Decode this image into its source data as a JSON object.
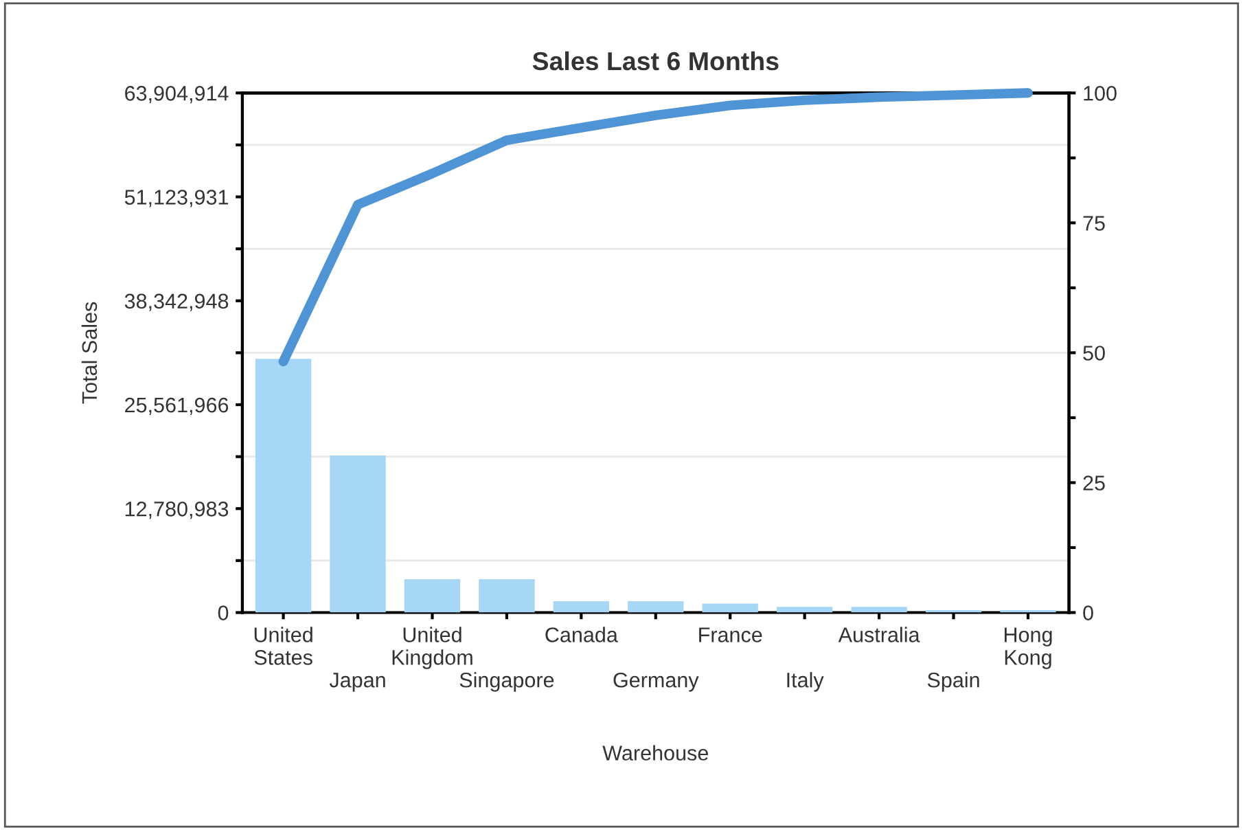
{
  "chart_data": {
    "type": "bar",
    "title": "Sales Last 6 Months",
    "xlabel": "Warehouse",
    "ylabel": "Total Sales",
    "categories": [
      "United\nStates",
      "Japan",
      "United\nKingdom",
      "Singapore",
      "Canada",
      "Germany",
      "France",
      "Italy",
      "Australia",
      "Spain",
      "Hong\nKong"
    ],
    "series": [
      {
        "color": "#a6d7f7",
        "values": [
          31200000,
          19300000,
          4100000,
          4100000,
          1400000,
          1400000,
          1100000,
          700000,
          700000,
          300000,
          300000
        ]
      },
      {
        "type": "line",
        "axis": "y2",
        "color": "#4f94d4",
        "values": [
          48.3,
          78.5,
          84.5,
          90.9,
          93.3,
          95.7,
          97.6,
          98.6,
          99.2,
          99.6,
          100
        ]
      }
    ],
    "ylim": [
      0,
      63904914
    ],
    "yticks": [
      0,
      {
        "value": 6390491.5,
        "label": null
      },
      {
        "value": 12780983,
        "label": "12,780,983"
      },
      {
        "value": 19171474.5,
        "label": null
      },
      {
        "value": 25561966,
        "label": "25,561,966"
      },
      {
        "value": 31952457,
        "label": null
      },
      {
        "value": 38342948,
        "label": "38,342,948"
      },
      {
        "value": 44733439.5,
        "label": null
      },
      {
        "value": 51123931,
        "label": "51,123,931"
      },
      {
        "value": 57514422.5,
        "label": null
      },
      {
        "value": 63904914,
        "label": "63,904,914"
      }
    ],
    "y2lim": [
      0,
      100
    ],
    "y2ticks": [
      0,
      {
        "value": 12.5,
        "label": null
      },
      25,
      {
        "value": 37.5,
        "label": null
      },
      50,
      {
        "value": 62.5,
        "label": null
      },
      75,
      {
        "value": 87.5,
        "label": null
      },
      100
    ],
    "grid": "y",
    "marker": "none",
    "line_style": "solid"
  }
}
